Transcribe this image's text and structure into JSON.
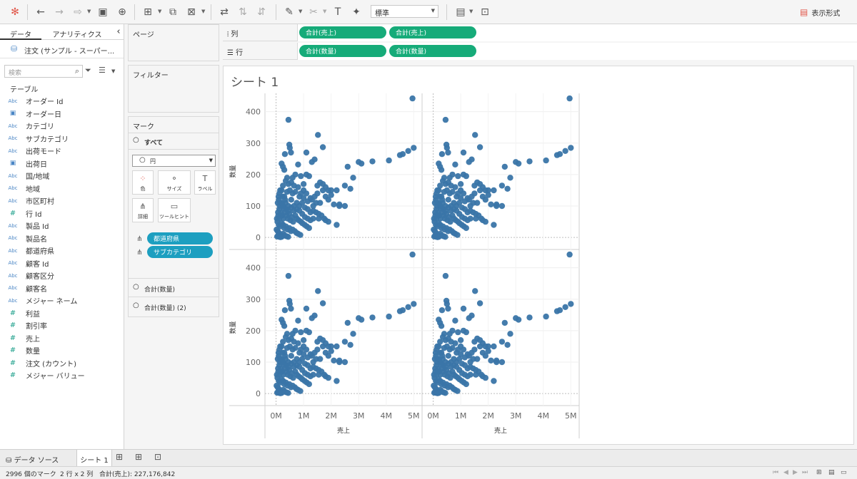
{
  "toolbar": {
    "standard_select": "標準",
    "show_me_label": "表示形式"
  },
  "data_pane": {
    "tab_data": "データ",
    "tab_analytics": "アナリティクス",
    "collapse_glyph": "‹",
    "datasource": "注文 (サンプル - スーパー...",
    "search_placeholder": "検索",
    "tables_header": "テーブル",
    "fields": [
      {
        "icon": "Abc",
        "name": "オーダー Id",
        "kind": "str"
      },
      {
        "icon": "date",
        "name": "オーダー日",
        "kind": "date"
      },
      {
        "icon": "Abc",
        "name": "カテゴリ",
        "kind": "str"
      },
      {
        "icon": "Abc",
        "name": "サブカテゴリ",
        "kind": "str"
      },
      {
        "icon": "Abc",
        "name": "出荷モード",
        "kind": "str"
      },
      {
        "icon": "date",
        "name": "出荷日",
        "kind": "date"
      },
      {
        "icon": "Abc",
        "name": "国/地域",
        "kind": "str"
      },
      {
        "icon": "Abc",
        "name": "地域",
        "kind": "str"
      },
      {
        "icon": "Abc",
        "name": "市区町村",
        "kind": "str"
      },
      {
        "icon": "#",
        "name": "行 Id",
        "kind": "num"
      },
      {
        "icon": "Abc",
        "name": "製品 Id",
        "kind": "str"
      },
      {
        "icon": "Abc",
        "name": "製品名",
        "kind": "str"
      },
      {
        "icon": "Abc",
        "name": "都道府県",
        "kind": "str"
      },
      {
        "icon": "Abc",
        "name": "顧客 Id",
        "kind": "str"
      },
      {
        "icon": "Abc",
        "name": "顧客区分",
        "kind": "str"
      },
      {
        "icon": "Abc",
        "name": "顧客名",
        "kind": "str"
      },
      {
        "icon": "Abc",
        "name": "メジャー ネーム",
        "kind": "str"
      },
      {
        "icon": "#",
        "name": "利益",
        "kind": "num"
      },
      {
        "icon": "#",
        "name": "割引率",
        "kind": "num"
      },
      {
        "icon": "#",
        "name": "売上",
        "kind": "num"
      },
      {
        "icon": "#",
        "name": "数量",
        "kind": "num"
      },
      {
        "icon": "#",
        "name": "注文 (カウント)",
        "kind": "num"
      },
      {
        "icon": "#",
        "name": "メジャー バリュー",
        "kind": "num"
      }
    ]
  },
  "cards": {
    "pages": "ページ",
    "filters": "フィルター",
    "marks": "マーク",
    "all_label": "すべて",
    "mark_type": "円",
    "buttons": {
      "color": "色",
      "size": "サイズ",
      "label": "ラベル",
      "detail": "詳細",
      "tooltip": "ツールヒント"
    },
    "detail_pills": [
      "都道府県",
      "サブカテゴリ"
    ],
    "measure_tabs": [
      "合計(数量)",
      "合計(数量) (2)"
    ]
  },
  "shelves": {
    "columns_label": "列",
    "rows_label": "行",
    "columns_pills": [
      "合計(売上)",
      "合計(売上)"
    ],
    "rows_pills": [
      "合計(数量)",
      "合計(数量)"
    ]
  },
  "sheet": {
    "title": "シート 1",
    "color": "#3a75a8"
  },
  "chart_data": {
    "type": "scatter",
    "layout": "2 x 2 grid (rows: 合計(数量), 合計(数量); columns: 合計(売上), 合計(売上)); all four panels show identical data",
    "xlabel": "売上",
    "ylabel": "数量",
    "xlim": [
      -300000,
      5200000
    ],
    "ylim": [
      -20,
      440
    ],
    "xticks": [
      {
        "v": 0,
        "label": "0M"
      },
      {
        "v": 1000000,
        "label": "1M"
      },
      {
        "v": 2000000,
        "label": "2M"
      },
      {
        "v": 3000000,
        "label": "3M"
      },
      {
        "v": 4000000,
        "label": "4M"
      },
      {
        "v": 5000000,
        "label": "5M"
      }
    ],
    "yticks": [
      0,
      100,
      200,
      300,
      400
    ],
    "points": [
      [
        4955000,
        442
      ],
      [
        450000,
        374
      ],
      [
        1520000,
        326
      ],
      [
        480000,
        295
      ],
      [
        500000,
        285
      ],
      [
        540000,
        270
      ],
      [
        1100000,
        270
      ],
      [
        1700000,
        287
      ],
      [
        320000,
        265
      ],
      [
        5000000,
        285
      ],
      [
        4500000,
        262
      ],
      [
        4600000,
        265
      ],
      [
        4800000,
        275
      ],
      [
        3500000,
        242
      ],
      [
        4100000,
        245
      ],
      [
        3000000,
        240
      ],
      [
        2600000,
        225
      ],
      [
        1300000,
        240
      ],
      [
        1400000,
        248
      ],
      [
        1100000,
        200
      ],
      [
        800000,
        232
      ],
      [
        200000,
        235
      ],
      [
        250000,
        225
      ],
      [
        300000,
        215
      ],
      [
        400000,
        190
      ],
      [
        600000,
        190
      ],
      [
        700000,
        200
      ],
      [
        900000,
        195
      ],
      [
        1000000,
        170
      ],
      [
        1200000,
        195
      ],
      [
        1500000,
        165
      ],
      [
        1600000,
        175
      ],
      [
        1700000,
        170
      ],
      [
        1800000,
        160
      ],
      [
        1900000,
        150
      ],
      [
        2000000,
        150
      ],
      [
        2200000,
        150
      ],
      [
        2500000,
        165
      ],
      [
        2700000,
        155
      ],
      [
        2800000,
        190
      ],
      [
        2300000,
        105
      ],
      [
        2300000,
        100
      ],
      [
        2500000,
        100
      ],
      [
        3100000,
        235
      ],
      [
        1300000,
        120
      ],
      [
        1400000,
        130
      ],
      [
        1500000,
        140
      ],
      [
        1700000,
        150
      ],
      [
        1800000,
        130
      ],
      [
        2000000,
        135
      ],
      [
        2100000,
        105
      ],
      [
        1900000,
        120
      ],
      [
        1600000,
        110
      ],
      [
        1100000,
        140
      ],
      [
        1000000,
        150
      ],
      [
        900000,
        140
      ],
      [
        800000,
        160
      ],
      [
        700000,
        145
      ],
      [
        600000,
        140
      ],
      [
        500000,
        150
      ],
      [
        400000,
        145
      ],
      [
        300000,
        130
      ],
      [
        200000,
        150
      ],
      [
        100000,
        120
      ],
      [
        150000,
        110
      ],
      [
        250000,
        100
      ],
      [
        350000,
        110
      ],
      [
        450000,
        100
      ],
      [
        550000,
        120
      ],
      [
        650000,
        100
      ],
      [
        750000,
        110
      ],
      [
        850000,
        100
      ],
      [
        950000,
        110
      ],
      [
        1050000,
        95
      ],
      [
        1150000,
        90
      ],
      [
        1250000,
        80
      ],
      [
        1350000,
        85
      ],
      [
        1450000,
        80
      ],
      [
        1550000,
        75
      ],
      [
        1650000,
        70
      ],
      [
        1750000,
        60
      ],
      [
        1900000,
        50
      ],
      [
        2200000,
        40
      ],
      [
        1800000,
        55
      ],
      [
        1550000,
        60
      ],
      [
        80000,
        70
      ],
      [
        120000,
        90
      ],
      [
        180000,
        80
      ],
      [
        220000,
        70
      ],
      [
        260000,
        60
      ],
      [
        320000,
        80
      ],
      [
        380000,
        70
      ],
      [
        420000,
        60
      ],
      [
        480000,
        75
      ],
      [
        520000,
        55
      ],
      [
        580000,
        65
      ],
      [
        620000,
        50
      ],
      [
        700000,
        70
      ],
      [
        760000,
        60
      ],
      [
        820000,
        55
      ],
      [
        900000,
        50
      ],
      [
        960000,
        45
      ],
      [
        1040000,
        40
      ],
      [
        1120000,
        35
      ],
      [
        1200000,
        30
      ],
      [
        50000,
        50
      ],
      [
        100000,
        40
      ],
      [
        150000,
        35
      ],
      [
        200000,
        45
      ],
      [
        260000,
        40
      ],
      [
        300000,
        30
      ],
      [
        360000,
        35
      ],
      [
        420000,
        25
      ],
      [
        480000,
        30
      ],
      [
        540000,
        20
      ],
      [
        600000,
        25
      ],
      [
        680000,
        20
      ],
      [
        740000,
        15
      ],
      [
        800000,
        12
      ],
      [
        880000,
        8
      ],
      [
        20000,
        25
      ],
      [
        60000,
        20
      ],
      [
        100000,
        15
      ],
      [
        140000,
        10
      ],
      [
        180000,
        8
      ],
      [
        220000,
        5
      ],
      [
        260000,
        12
      ],
      [
        320000,
        6
      ],
      [
        380000,
        4
      ],
      [
        440000,
        2
      ],
      [
        40000,
        3
      ],
      [
        80000,
        5
      ],
      [
        120000,
        2
      ],
      [
        160000,
        1
      ],
      [
        200000,
        2
      ],
      [
        30000,
        60
      ],
      [
        70000,
        80
      ],
      [
        110000,
        60
      ],
      [
        130000,
        100
      ],
      [
        170000,
        70
      ],
      [
        210000,
        110
      ],
      [
        240000,
        130
      ],
      [
        280000,
        95
      ],
      [
        330000,
        120
      ],
      [
        370000,
        90
      ],
      [
        1350000,
        60
      ],
      [
        1250000,
        55
      ],
      [
        1150000,
        60
      ],
      [
        1050000,
        65
      ],
      [
        950000,
        75
      ],
      [
        850000,
        85
      ],
      [
        750000,
        90
      ],
      [
        650000,
        85
      ],
      [
        550000,
        95
      ],
      [
        450000,
        85
      ],
      [
        350000,
        180
      ],
      [
        450000,
        170
      ],
      [
        550000,
        175
      ],
      [
        650000,
        165
      ],
      [
        850000,
        130
      ],
      [
        250000,
        165
      ],
      [
        150000,
        150
      ],
      [
        120000,
        140
      ],
      [
        90000,
        130
      ],
      [
        60000,
        110
      ],
      [
        1450000,
        110
      ],
      [
        1350000,
        100
      ],
      [
        1250000,
        125
      ],
      [
        1150000,
        115
      ],
      [
        1000000,
        125
      ]
    ]
  },
  "bottom_tabs": {
    "datasource_tab": "データ ソース",
    "sheet_tab": "シート 1"
  },
  "status": {
    "marks_count": "2996 個のマーク",
    "grid_size": "2 行 x 2 列",
    "sum_label": "合計(売上): 227,176,842"
  }
}
